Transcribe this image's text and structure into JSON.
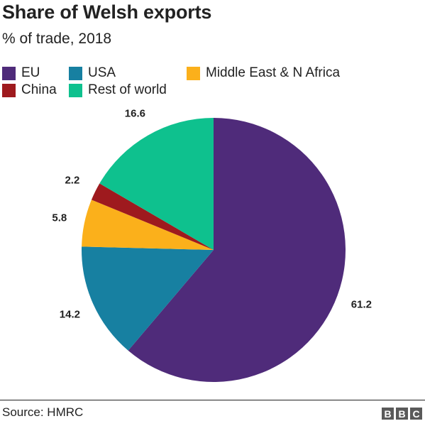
{
  "header": {
    "title": "Share of Welsh exports",
    "subtitle": "% of trade, 2018"
  },
  "chart_data": {
    "type": "pie",
    "title": "Share of Welsh exports",
    "subtitle": "% of trade, 2018",
    "legend_position": "top",
    "slices": [
      {
        "label": "EU",
        "value": 61.2,
        "color": "#4f2b7a"
      },
      {
        "label": "USA",
        "value": 14.2,
        "color": "#1780a1"
      },
      {
        "label": "Middle East & N Africa",
        "value": 5.8,
        "color": "#fbb01b"
      },
      {
        "label": "China",
        "value": 2.2,
        "color": "#9e1a1e"
      },
      {
        "label": "Rest of world",
        "value": 16.6,
        "color": "#0ec18e"
      }
    ],
    "data_labels": [
      "61.2",
      "14.2",
      "5.8",
      "2.2",
      "16.6"
    ]
  },
  "footer": {
    "source": "Source: HMRC",
    "logo_letters": [
      "B",
      "B",
      "C"
    ]
  }
}
